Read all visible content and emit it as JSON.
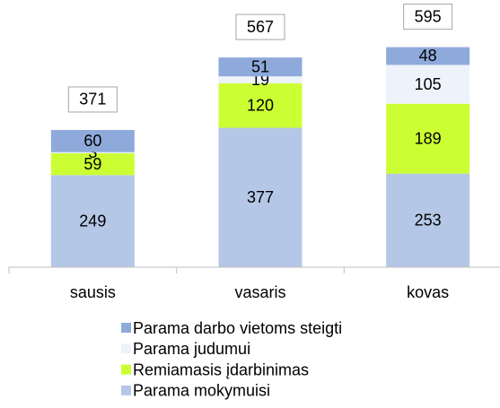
{
  "chart_data": {
    "type": "bar",
    "stacked": true,
    "categories": [
      "sausis",
      "vasaris",
      "kovas"
    ],
    "series": [
      {
        "name": "Parama mokymuisi",
        "color": "#b4c7e7",
        "values": [
          249,
          377,
          253
        ]
      },
      {
        "name": "Remiamasis įdarbinimas",
        "color": "#ccff33",
        "values": [
          59,
          120,
          189
        ]
      },
      {
        "name": "Parama judumui",
        "color": "#eef2fb",
        "values": [
          3,
          19,
          105
        ]
      },
      {
        "name": "Parama darbo vietoms steigti",
        "color": "#8eaadb",
        "values": [
          60,
          51,
          48
        ]
      }
    ],
    "totals": [
      371,
      567,
      595
    ],
    "ylim": [
      0,
      720
    ]
  }
}
